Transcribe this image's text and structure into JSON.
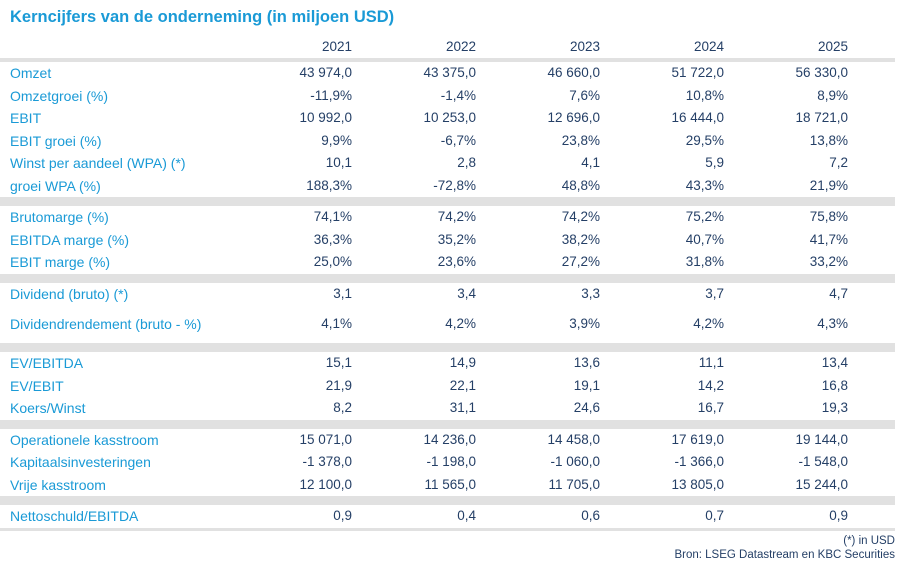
{
  "title": "Kerncijfers van de onderneming (in miljoen USD)",
  "years": [
    "2021",
    "2022",
    "2023",
    "2024",
    "2025"
  ],
  "groups": [
    [
      {
        "label": "Omzet",
        "values": [
          "43 974,0",
          "43 375,0",
          "46 660,0",
          "51 722,0",
          "56 330,0"
        ]
      },
      {
        "label": "Omzetgroei (%)",
        "values": [
          "-11,9%",
          "-1,4%",
          "7,6%",
          "10,8%",
          "8,9%"
        ]
      },
      {
        "label": "EBIT",
        "values": [
          "10 992,0",
          "10 253,0",
          "12 696,0",
          "16 444,0",
          "18 721,0"
        ]
      },
      {
        "label": "EBIT groei (%)",
        "values": [
          "9,9%",
          "-6,7%",
          "23,8%",
          "29,5%",
          "13,8%"
        ]
      },
      {
        "label": "Winst per aandeel (WPA) (*)",
        "values": [
          "10,1",
          "2,8",
          "4,1",
          "5,9",
          "7,2"
        ]
      },
      {
        "label": "groei WPA (%)",
        "values": [
          "188,3%",
          "-72,8%",
          "48,8%",
          "43,3%",
          "21,9%"
        ]
      }
    ],
    [
      {
        "label": "Brutomarge (%)",
        "values": [
          "74,1%",
          "74,2%",
          "74,2%",
          "75,2%",
          "75,8%"
        ]
      },
      {
        "label": "EBITDA marge (%)",
        "values": [
          "36,3%",
          "35,2%",
          "38,2%",
          "40,7%",
          "41,7%"
        ]
      },
      {
        "label": "EBIT marge (%)",
        "values": [
          "25,0%",
          "23,6%",
          "27,2%",
          "31,8%",
          "33,2%"
        ]
      }
    ],
    [
      {
        "label": "Dividend (bruto) (*)",
        "values": [
          "3,1",
          "3,4",
          "3,3",
          "3,7",
          "4,7"
        ]
      },
      {
        "label": "Dividendrendement (bruto - %)",
        "values": [
          "4,1%",
          "4,2%",
          "3,9%",
          "4,2%",
          "4,3%"
        ]
      }
    ],
    [
      {
        "label": "EV/EBITDA",
        "values": [
          "15,1",
          "14,9",
          "13,6",
          "11,1",
          "13,4"
        ]
      },
      {
        "label": "EV/EBIT",
        "values": [
          "21,9",
          "22,1",
          "19,1",
          "14,2",
          "16,8"
        ]
      },
      {
        "label": "Koers/Winst",
        "values": [
          "8,2",
          "31,1",
          "24,6",
          "16,7",
          "19,3"
        ]
      }
    ],
    [
      {
        "label": "Operationele kasstroom",
        "values": [
          "15 071,0",
          "14 236,0",
          "14 458,0",
          "17 619,0",
          "19 144,0"
        ]
      },
      {
        "label": "Kapitaalsinvesteringen",
        "values": [
          "-1 378,0",
          "-1 198,0",
          "-1 060,0",
          "-1 366,0",
          "-1 548,0"
        ]
      },
      {
        "label": "Vrije kasstroom",
        "values": [
          "12 100,0",
          "11 565,0",
          "11 705,0",
          "13 805,0",
          "15 244,0"
        ]
      }
    ],
    [
      {
        "label": "Nettoschuld/EBITDA",
        "values": [
          "0,9",
          "0,4",
          "0,6",
          "0,7",
          "0,9"
        ]
      }
    ]
  ],
  "footnote": "(*) in USD",
  "source": "Bron: LSEG Datastream en KBC Securities",
  "colors": {
    "label": "#1a9ad6",
    "value": "#243f66",
    "band": "#e1e1e1"
  }
}
